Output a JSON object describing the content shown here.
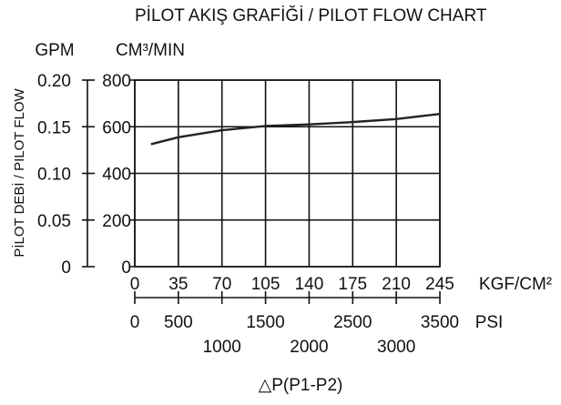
{
  "chart_data": {
    "type": "line",
    "title": [
      "PİLOT AKIŞ GRAFİĞİ",
      "/ PILOT FLOW CHART"
    ],
    "xlabel": "KGF/CM²",
    "x2label": "PSI",
    "ylabel": "CM³/MIN",
    "y2label": "GPM",
    "side_label": "PİLOT DEBİ / PILOT FLOW",
    "bottom_label": "△P(P1-P2)",
    "x": [
      13,
      35,
      70,
      105,
      140,
      175,
      210,
      245
    ],
    "series": [
      {
        "color": "#222222",
        "values": [
          525,
          555,
          585,
          603,
          610,
          620,
          633,
          655
        ]
      }
    ],
    "xlim": [
      0,
      245
    ],
    "xticks": [
      0,
      35,
      70,
      105,
      140,
      175,
      210,
      245
    ],
    "x2lim": [
      0,
      3500
    ],
    "x2ticks": [
      0,
      500,
      1000,
      1500,
      2000,
      2500,
      3000,
      3500
    ],
    "ylim": [
      0,
      800
    ],
    "yticks": [
      0,
      200,
      400,
      600,
      800
    ],
    "y2lim": [
      0,
      0.2
    ],
    "y2ticks": [
      0,
      0.05,
      {
        "value": 0.1,
        "label": "0.10"
      },
      0.15,
      {
        "value": 0.2,
        "label": "0.20"
      }
    ],
    "grid": true
  }
}
